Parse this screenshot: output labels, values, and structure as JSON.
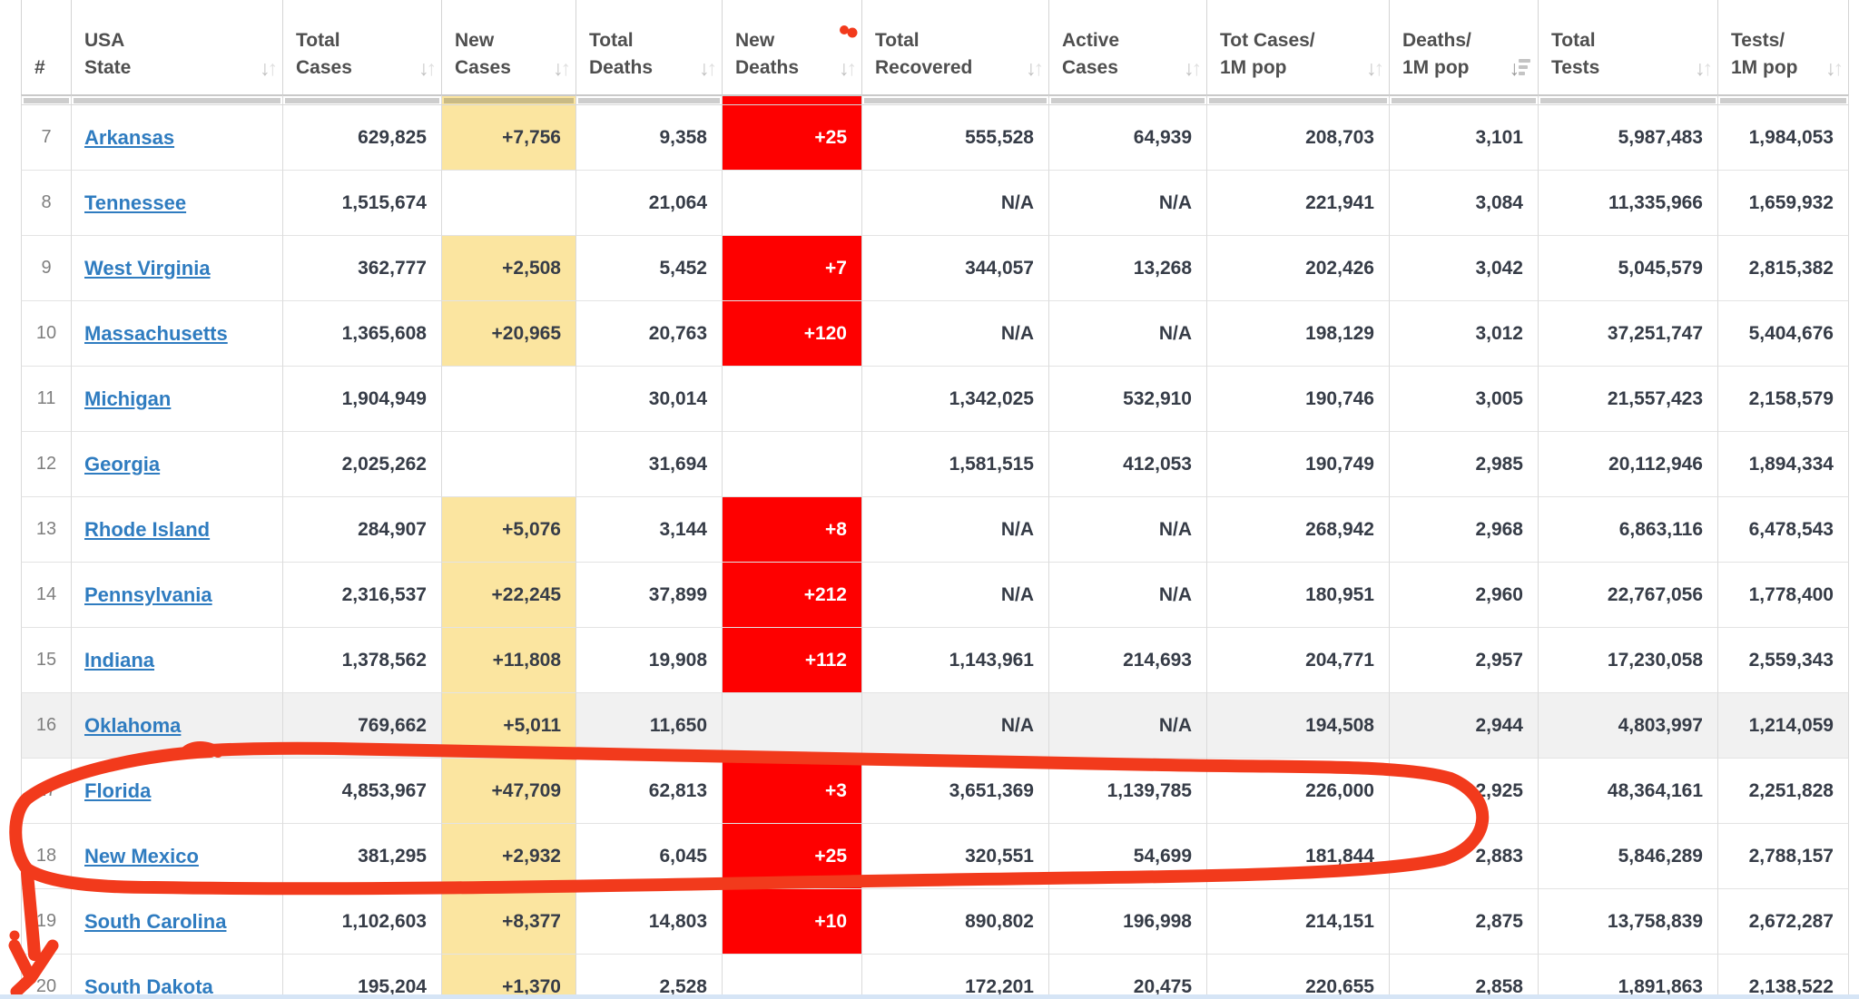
{
  "colors": {
    "new_cases_highlight": "#fbe5a0",
    "new_deaths_highlight": "#fe0000",
    "link_blue": "#2f7cc0",
    "annotation_red": "#f23a1c",
    "hover_row_gray": "#f1f1f1",
    "bottom_strip_blue": "#d6e5f6"
  },
  "header": {
    "columns": [
      {
        "id": "rank",
        "label_lines": [
          "#"
        ],
        "sort": "none"
      },
      {
        "id": "state",
        "label_lines": [
          "USA",
          "State"
        ],
        "sort": "both"
      },
      {
        "id": "total_cases",
        "label_lines": [
          "Total",
          "Cases"
        ],
        "sort": "both"
      },
      {
        "id": "new_cases",
        "label_lines": [
          "New",
          "Cases"
        ],
        "sort": "both"
      },
      {
        "id": "total_deaths",
        "label_lines": [
          "Total",
          "Deaths"
        ],
        "sort": "both"
      },
      {
        "id": "new_deaths",
        "label_lines": [
          "New",
          "Deaths"
        ],
        "sort": "both",
        "red_dot": true
      },
      {
        "id": "total_recovered",
        "label_lines": [
          "Total",
          "Recovered"
        ],
        "sort": "both"
      },
      {
        "id": "active_cases",
        "label_lines": [
          "Active",
          "Cases"
        ],
        "sort": "both"
      },
      {
        "id": "cases_per_1m",
        "label_lines": [
          "Tot Cases/",
          "1M pop"
        ],
        "sort": "both"
      },
      {
        "id": "deaths_per_1m",
        "label_lines": [
          "Deaths/",
          "1M pop"
        ],
        "sort": "desc"
      },
      {
        "id": "total_tests",
        "label_lines": [
          "Total",
          "Tests"
        ],
        "sort": "both"
      },
      {
        "id": "tests_per_1m",
        "label_lines": [
          "Tests/",
          "1M pop"
        ],
        "sort": "both"
      }
    ]
  },
  "table": {
    "rows": [
      {
        "rank": "7",
        "state": "Arkansas",
        "total_cases": "629,825",
        "new_cases": "+7,756",
        "total_deaths": "9,358",
        "new_deaths": "+25",
        "total_recovered": "555,528",
        "active_cases": "64,939",
        "cases_per_1m": "208,703",
        "deaths_per_1m": "3,101",
        "total_tests": "5,987,483",
        "tests_per_1m": "1,984,053",
        "highlighted": false
      },
      {
        "rank": "8",
        "state": "Tennessee",
        "total_cases": "1,515,674",
        "new_cases": "",
        "total_deaths": "21,064",
        "new_deaths": "",
        "total_recovered": "N/A",
        "active_cases": "N/A",
        "cases_per_1m": "221,941",
        "deaths_per_1m": "3,084",
        "total_tests": "11,335,966",
        "tests_per_1m": "1,659,932",
        "highlighted": false
      },
      {
        "rank": "9",
        "state": "West Virginia",
        "total_cases": "362,777",
        "new_cases": "+2,508",
        "total_deaths": "5,452",
        "new_deaths": "+7",
        "total_recovered": "344,057",
        "active_cases": "13,268",
        "cases_per_1m": "202,426",
        "deaths_per_1m": "3,042",
        "total_tests": "5,045,579",
        "tests_per_1m": "2,815,382",
        "highlighted": false
      },
      {
        "rank": "10",
        "state": "Massachusetts",
        "total_cases": "1,365,608",
        "new_cases": "+20,965",
        "total_deaths": "20,763",
        "new_deaths": "+120",
        "total_recovered": "N/A",
        "active_cases": "N/A",
        "cases_per_1m": "198,129",
        "deaths_per_1m": "3,012",
        "total_tests": "37,251,747",
        "tests_per_1m": "5,404,676",
        "highlighted": false
      },
      {
        "rank": "11",
        "state": "Michigan",
        "total_cases": "1,904,949",
        "new_cases": "",
        "total_deaths": "30,014",
        "new_deaths": "",
        "total_recovered": "1,342,025",
        "active_cases": "532,910",
        "cases_per_1m": "190,746",
        "deaths_per_1m": "3,005",
        "total_tests": "21,557,423",
        "tests_per_1m": "2,158,579",
        "highlighted": false
      },
      {
        "rank": "12",
        "state": "Georgia",
        "total_cases": "2,025,262",
        "new_cases": "",
        "total_deaths": "31,694",
        "new_deaths": "",
        "total_recovered": "1,581,515",
        "active_cases": "412,053",
        "cases_per_1m": "190,749",
        "deaths_per_1m": "2,985",
        "total_tests": "20,112,946",
        "tests_per_1m": "1,894,334",
        "highlighted": false
      },
      {
        "rank": "13",
        "state": "Rhode Island",
        "total_cases": "284,907",
        "new_cases": "+5,076",
        "total_deaths": "3,144",
        "new_deaths": "+8",
        "total_recovered": "N/A",
        "active_cases": "N/A",
        "cases_per_1m": "268,942",
        "deaths_per_1m": "2,968",
        "total_tests": "6,863,116",
        "tests_per_1m": "6,478,543",
        "highlighted": false
      },
      {
        "rank": "14",
        "state": "Pennsylvania",
        "total_cases": "2,316,537",
        "new_cases": "+22,245",
        "total_deaths": "37,899",
        "new_deaths": "+212",
        "total_recovered": "N/A",
        "active_cases": "N/A",
        "cases_per_1m": "180,951",
        "deaths_per_1m": "2,960",
        "total_tests": "22,767,056",
        "tests_per_1m": "1,778,400",
        "highlighted": false
      },
      {
        "rank": "15",
        "state": "Indiana",
        "total_cases": "1,378,562",
        "new_cases": "+11,808",
        "total_deaths": "19,908",
        "new_deaths": "+112",
        "total_recovered": "1,143,961",
        "active_cases": "214,693",
        "cases_per_1m": "204,771",
        "deaths_per_1m": "2,957",
        "total_tests": "17,230,058",
        "tests_per_1m": "2,559,343",
        "highlighted": false
      },
      {
        "rank": "16",
        "state": "Oklahoma",
        "total_cases": "769,662",
        "new_cases": "+5,011",
        "total_deaths": "11,650",
        "new_deaths": "",
        "total_recovered": "N/A",
        "active_cases": "N/A",
        "cases_per_1m": "194,508",
        "deaths_per_1m": "2,944",
        "total_tests": "4,803,997",
        "tests_per_1m": "1,214,059",
        "highlighted": true
      },
      {
        "rank": "17",
        "state": "Florida",
        "total_cases": "4,853,967",
        "new_cases": "+47,709",
        "total_deaths": "62,813",
        "new_deaths": "+3",
        "total_recovered": "3,651,369",
        "active_cases": "1,139,785",
        "cases_per_1m": "226,000",
        "deaths_per_1m": "2,925",
        "total_tests": "48,364,161",
        "tests_per_1m": "2,251,828",
        "highlighted": false
      },
      {
        "rank": "18",
        "state": "New Mexico",
        "total_cases": "381,295",
        "new_cases": "+2,932",
        "total_deaths": "6,045",
        "new_deaths": "+25",
        "total_recovered": "320,551",
        "active_cases": "54,699",
        "cases_per_1m": "181,844",
        "deaths_per_1m": "2,883",
        "total_tests": "5,846,289",
        "tests_per_1m": "2,788,157",
        "highlighted": false
      },
      {
        "rank": "19",
        "state": "South Carolina",
        "total_cases": "1,102,603",
        "new_cases": "+8,377",
        "total_deaths": "14,803",
        "new_deaths": "+10",
        "total_recovered": "890,802",
        "active_cases": "196,998",
        "cases_per_1m": "214,151",
        "deaths_per_1m": "2,875",
        "total_tests": "13,758,839",
        "tests_per_1m": "2,672,287",
        "highlighted": false
      },
      {
        "rank": "20",
        "state": "South Dakota",
        "total_cases": "195,204",
        "new_cases": "+1,370",
        "total_deaths": "2,528",
        "new_deaths": "",
        "total_recovered": "172,201",
        "active_cases": "20,475",
        "cases_per_1m": "220,655",
        "deaths_per_1m": "2,858",
        "total_tests": "1,891,863",
        "tests_per_1m": "2,138,522",
        "highlighted": false
      }
    ]
  },
  "annotation": {
    "description": "hand-drawn red loop circling rows 17 (Florida) and 18 (New Mexico), red down-arrow at lower left with a small red dot, and a red dot beside the New Deaths header"
  }
}
